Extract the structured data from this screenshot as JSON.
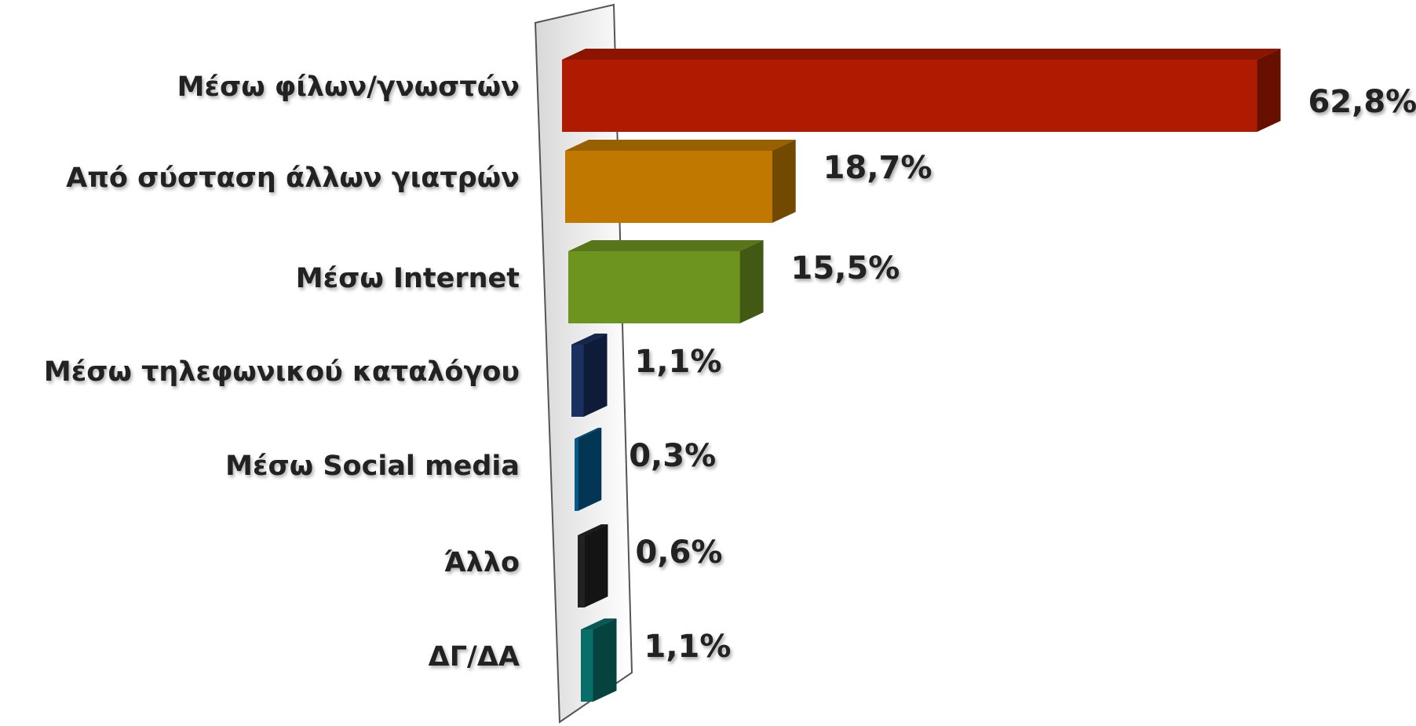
{
  "chart_data": {
    "type": "bar",
    "orientation": "horizontal",
    "categories": [
      "Μέσω φίλων/γνωστών",
      "Από σύσταση άλλων γιατρών",
      "Μέσω Internet",
      "Μέσω τηλεφωνικού καταλόγου",
      "Μέσω Social media",
      "Άλλο",
      "ΔΓ/ΔΑ"
    ],
    "values": [
      62.8,
      18.7,
      15.5,
      1.1,
      0.3,
      0.6,
      1.1
    ],
    "value_labels": [
      "62,8%",
      "18,7%",
      "15,5%",
      "1,1%",
      "0,3%",
      "0,6%",
      "1,1%"
    ],
    "colors": [
      "#ae1b00",
      "#c07800",
      "#6e9420",
      "#1a3060",
      "#045a8c",
      "#222222",
      "#0a6e68"
    ]
  }
}
